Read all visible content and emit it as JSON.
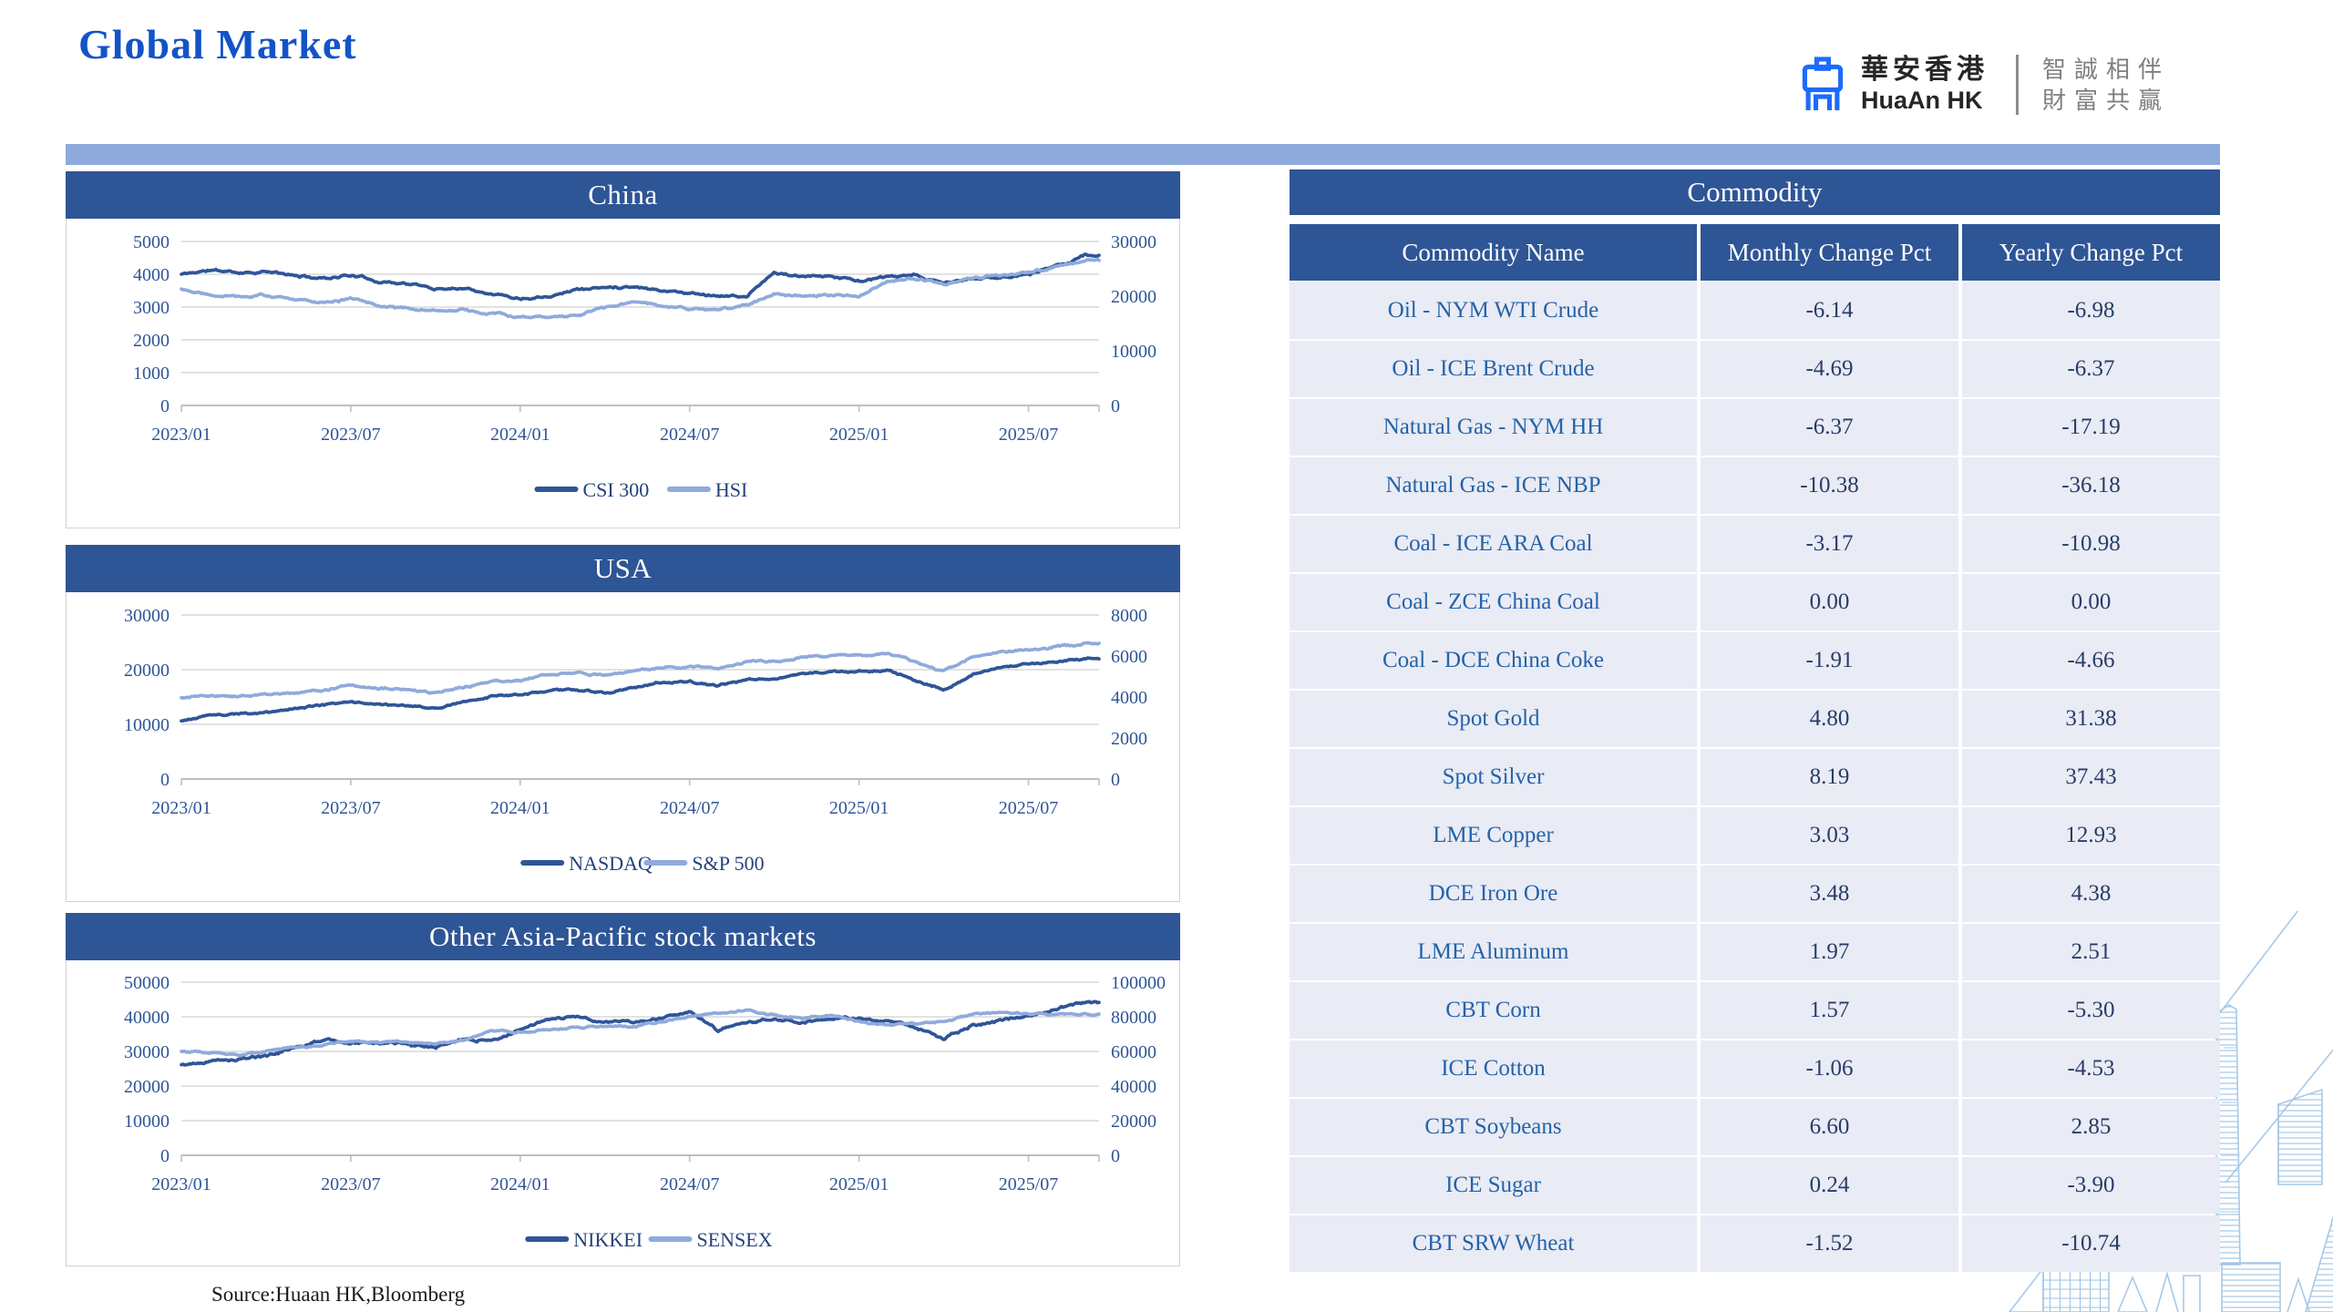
{
  "page": {
    "title": "Global Market",
    "source_note": "Source:Huaan HK,Bloomberg"
  },
  "logo": {
    "cn_name": "華安香港",
    "en_name": "HuaAn HK",
    "slogan_line1": "智誠相伴",
    "slogan_line2": "財富共贏"
  },
  "colors": {
    "title_blue": "#1353C8",
    "header_blue": "#2E5595",
    "band_blue": "#8FAADC",
    "series_dark": "#2F5597",
    "series_light": "#8FAADC",
    "grid_gray": "#D9D9D9",
    "axis_gray": "#BFBFBF",
    "axis_text": "#2E5597",
    "legend_text": "#24427C",
    "row_bg": "#E9EBF5",
    "name_text": "#2463A8",
    "value_text": "#283D66",
    "logo_blue": "#1D6BFF",
    "slogan_gray": "#7F7F7F"
  },
  "chart_data": [
    {
      "type": "line",
      "title": "China",
      "x_tick_labels": [
        "2023/01",
        "2023/07",
        "2024/01",
        "2024/07",
        "2025/01",
        "2025/07"
      ],
      "x_tick_months": [
        0,
        6,
        12,
        18,
        24,
        30
      ],
      "months_total": 32.5,
      "left_axis": {
        "min": 0,
        "max": 5000,
        "ticks": [
          0,
          1000,
          2000,
          3000,
          4000,
          5000
        ]
      },
      "right_axis": {
        "min": 0,
        "max": 30000,
        "ticks": [
          0,
          10000,
          20000,
          30000
        ]
      },
      "grid": true,
      "legend_position": "bottom",
      "series": [
        {
          "name": "CSI 300",
          "axis": "left",
          "color_key": "series_dark",
          "seed": 11,
          "noise_amp": 55,
          "monthly_values": [
            4000,
            4120,
            4060,
            4080,
            3950,
            3880,
            3980,
            3790,
            3720,
            3560,
            3590,
            3430,
            3270,
            3360,
            3550,
            3590,
            3650,
            3520,
            3430,
            3360,
            3310,
            4050,
            3900,
            3960,
            3800,
            3900,
            3940,
            3720,
            3860,
            3900,
            4010,
            4260,
            4580
          ]
        },
        {
          "name": "HSI",
          "axis": "right",
          "color_key": "series_light",
          "seed": 22,
          "noise_amp": 330,
          "monthly_values": [
            21300,
            20400,
            20100,
            20200,
            19200,
            19000,
            19600,
            18400,
            17800,
            17100,
            17400,
            17000,
            16200,
            16400,
            16600,
            17800,
            18900,
            18100,
            17700,
            17400,
            18300,
            20700,
            19800,
            20100,
            19800,
            22700,
            23400,
            21900,
            23100,
            23900,
            24500,
            25300,
            26600
          ]
        }
      ]
    },
    {
      "type": "line",
      "title": "USA",
      "x_tick_labels": [
        "2023/01",
        "2023/07",
        "2024/01",
        "2024/07",
        "2025/01",
        "2025/07"
      ],
      "x_tick_months": [
        0,
        6,
        12,
        18,
        24,
        30
      ],
      "months_total": 32.5,
      "left_axis": {
        "min": 0,
        "max": 30000,
        "ticks": [
          0,
          10000,
          20000,
          30000
        ]
      },
      "right_axis": {
        "min": 0,
        "max": 8000,
        "ticks": [
          0,
          2000,
          4000,
          6000,
          8000
        ]
      },
      "grid": true,
      "legend_position": "bottom",
      "series": [
        {
          "name": "NASDAQ",
          "axis": "left",
          "color_key": "series_dark",
          "seed": 33,
          "noise_amp": 260,
          "monthly_values": [
            10600,
            11600,
            11900,
            12100,
            12900,
            13600,
            14100,
            13700,
            13200,
            12900,
            14200,
            15000,
            15300,
            16000,
            16300,
            15700,
            16700,
            17700,
            17900,
            16900,
            18100,
            18300,
            19100,
            19600,
            19700,
            19900,
            18000,
            16300,
            19100,
            20300,
            20900,
            21400,
            22100
          ]
        },
        {
          "name": "S&P 500",
          "axis": "right",
          "color_key": "series_light",
          "seed": 44,
          "noise_amp": 77,
          "monthly_values": [
            3950,
            4070,
            4000,
            4130,
            4160,
            4350,
            4550,
            4450,
            4330,
            4200,
            4500,
            4750,
            4860,
            5070,
            5220,
            5060,
            5260,
            5460,
            5520,
            5380,
            5680,
            5750,
            5970,
            5980,
            6060,
            6100,
            5750,
            5250,
            5900,
            6170,
            6280,
            6440,
            6620
          ]
        }
      ]
    },
    {
      "type": "line",
      "title": "Other Asia-Pacific stock markets",
      "x_tick_labels": [
        "2023/01",
        "2023/07",
        "2024/01",
        "2024/07",
        "2025/01",
        "2025/07"
      ],
      "x_tick_months": [
        0,
        6,
        12,
        18,
        24,
        30
      ],
      "months_total": 32.5,
      "left_axis": {
        "min": 0,
        "max": 50000,
        "ticks": [
          0,
          10000,
          20000,
          30000,
          40000,
          50000
        ]
      },
      "right_axis": {
        "min": 0,
        "max": 100000,
        "ticks": [
          0,
          20000,
          40000,
          60000,
          80000,
          100000
        ]
      },
      "grid": true,
      "legend_position": "bottom",
      "series": [
        {
          "name": "NIKKEI",
          "axis": "left",
          "color_key": "series_dark",
          "seed": 55,
          "noise_amp": 570,
          "monthly_values": [
            26100,
            27400,
            27800,
            28800,
            30900,
            33200,
            32900,
            32500,
            32100,
            31200,
            33500,
            33200,
            36200,
            39100,
            40400,
            38200,
            38400,
            39600,
            41200,
            36200,
            38100,
            39100,
            38400,
            39800,
            39500,
            38700,
            36900,
            33600,
            37600,
            38500,
            40500,
            42600,
            44000
          ]
        },
        {
          "name": "SENSEX",
          "axis": "right",
          "color_key": "series_light",
          "seed": 66,
          "noise_amp": 770,
          "monthly_values": [
            60400,
            59600,
            58200,
            60700,
            62500,
            63800,
            66500,
            65100,
            66000,
            64300,
            67000,
            72100,
            71700,
            72400,
            73600,
            74500,
            74100,
            77200,
            80600,
            81800,
            84500,
            80800,
            79200,
            81100,
            77300,
            74600,
            76200,
            77700,
            81200,
            82800,
            81500,
            81100,
            81600
          ]
        }
      ]
    }
  ],
  "commodity_table": {
    "title": "Commodity",
    "columns": [
      "Commodity Name",
      "Monthly Change Pct",
      "Yearly Change Pct"
    ],
    "rows": [
      {
        "name": "Oil - NYM WTI Crude",
        "monthly": "-6.14",
        "yearly": "-6.98"
      },
      {
        "name": "Oil - ICE Brent Crude",
        "monthly": "-4.69",
        "yearly": "-6.37"
      },
      {
        "name": "Natural Gas - NYM HH",
        "monthly": "-6.37",
        "yearly": "-17.19"
      },
      {
        "name": "Natural Gas - ICE NBP",
        "monthly": "-10.38",
        "yearly": "-36.18"
      },
      {
        "name": "Coal - ICE ARA Coal",
        "monthly": "-3.17",
        "yearly": "-10.98"
      },
      {
        "name": "Coal - ZCE China Coal",
        "monthly": "0.00",
        "yearly": "0.00"
      },
      {
        "name": "Coal - DCE China Coke",
        "monthly": "-1.91",
        "yearly": "-4.66"
      },
      {
        "name": "Spot Gold",
        "monthly": "4.80",
        "yearly": "31.38"
      },
      {
        "name": "Spot Silver",
        "monthly": "8.19",
        "yearly": "37.43"
      },
      {
        "name": "LME Copper",
        "monthly": "3.03",
        "yearly": "12.93"
      },
      {
        "name": "DCE Iron Ore",
        "monthly": "3.48",
        "yearly": "4.38"
      },
      {
        "name": "LME Aluminum",
        "monthly": "1.97",
        "yearly": "2.51"
      },
      {
        "name": "CBT Corn",
        "monthly": "1.57",
        "yearly": "-5.30"
      },
      {
        "name": "ICE Cotton",
        "monthly": "-1.06",
        "yearly": "-4.53"
      },
      {
        "name": "CBT Soybeans",
        "monthly": "6.60",
        "yearly": "2.85"
      },
      {
        "name": "ICE Sugar",
        "monthly": "0.24",
        "yearly": "-3.90"
      },
      {
        "name": "CBT SRW Wheat",
        "monthly": "-1.52",
        "yearly": "-10.74"
      }
    ]
  }
}
